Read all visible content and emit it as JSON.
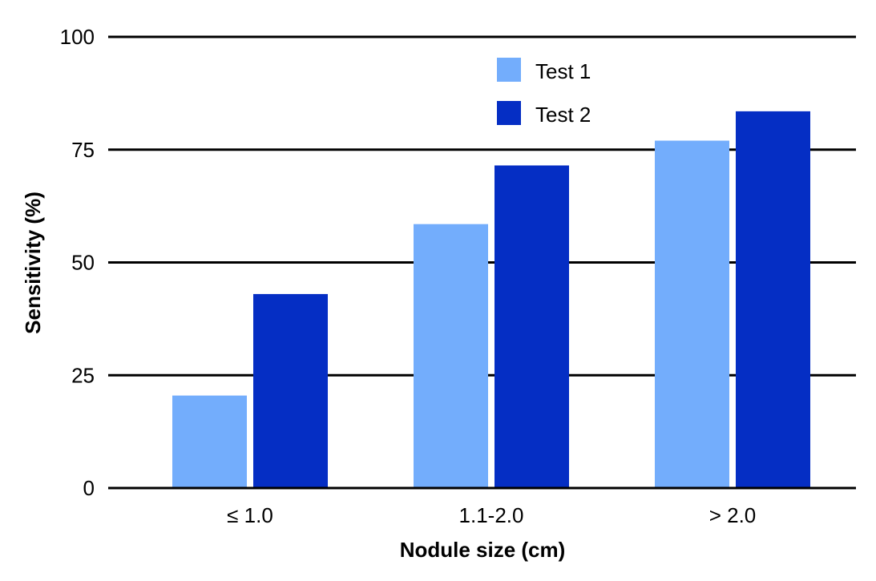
{
  "chart_data": {
    "type": "bar",
    "title": "",
    "xlabel": "Nodule size (cm)",
    "ylabel": "Sensitivity (%)",
    "categories": [
      "≤ 1.0",
      "1.1-2.0",
      "> 2.0"
    ],
    "series": [
      {
        "name": "Test 1",
        "color": "#73adfc",
        "values": [
          20.5,
          58.5,
          77
        ]
      },
      {
        "name": "Test 2",
        "color": "#052ec4",
        "values": [
          43,
          71.5,
          83.5
        ]
      }
    ],
    "ylim": [
      0,
      100
    ],
    "yticks": [
      "0",
      "25",
      "50",
      "75",
      "100"
    ],
    "grid": true,
    "legend_position": "top-center"
  }
}
